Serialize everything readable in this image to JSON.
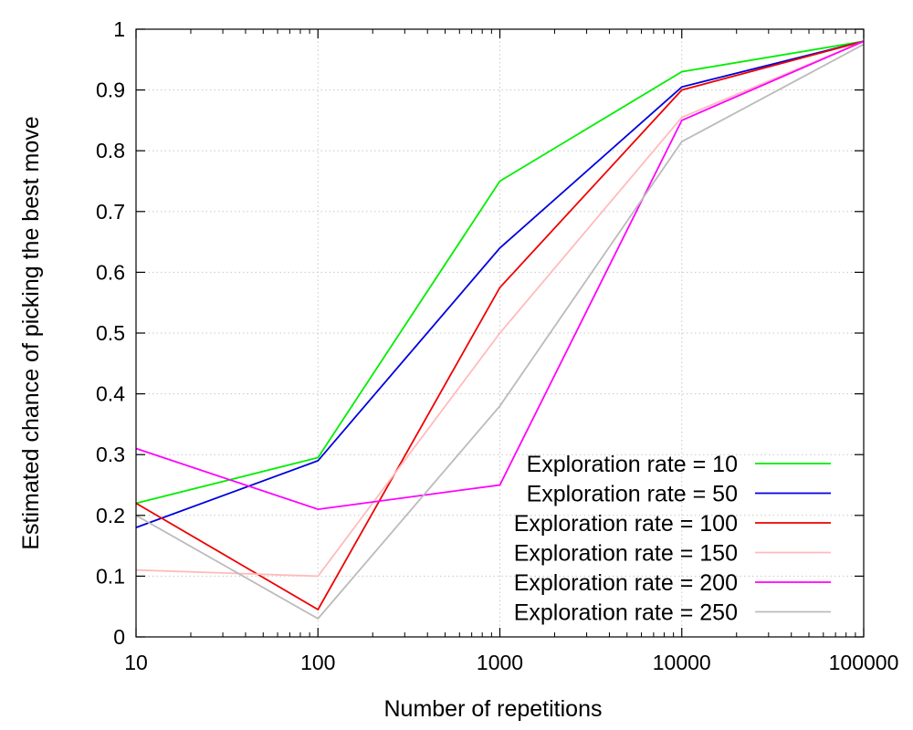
{
  "chart_data": {
    "type": "line",
    "xlabel": "Number of repetitions",
    "ylabel": "Estimated chance of picking the best move",
    "x_scale": "log",
    "x": [
      10,
      100,
      1000,
      10000,
      100000
    ],
    "xlim": [
      10,
      100000
    ],
    "ylim": [
      0,
      1
    ],
    "x_ticks": [
      "10",
      "100",
      "1000",
      "10000",
      "100000"
    ],
    "y_ticks": [
      "0",
      "0.1",
      "0.2",
      "0.3",
      "0.4",
      "0.5",
      "0.6",
      "0.7",
      "0.8",
      "0.9",
      "1"
    ],
    "y_tick_values": [
      0,
      0.1,
      0.2,
      0.3,
      0.4,
      0.5,
      0.6,
      0.7,
      0.8,
      0.9,
      1
    ],
    "grid": true,
    "legend_position": "bottom-right",
    "series": [
      {
        "name": "Exploration rate = 10",
        "color": "#00ee00",
        "values": [
          0.22,
          0.295,
          0.75,
          0.93,
          0.98
        ]
      },
      {
        "name": "Exploration rate = 50",
        "color": "#0000dd",
        "values": [
          0.18,
          0.29,
          0.64,
          0.905,
          0.98
        ]
      },
      {
        "name": "Exploration rate = 100",
        "color": "#ee0000",
        "values": [
          0.22,
          0.045,
          0.575,
          0.9,
          0.98
        ]
      },
      {
        "name": "Exploration rate = 150",
        "color": "#ffbbbb",
        "values": [
          0.11,
          0.1,
          0.5,
          0.855,
          0.98
        ]
      },
      {
        "name": "Exploration rate = 200",
        "color": "#ff00ff",
        "values": [
          0.31,
          0.21,
          0.25,
          0.85,
          0.98
        ]
      },
      {
        "name": "Exploration rate = 250",
        "color": "#bbbbbb",
        "values": [
          0.2,
          0.03,
          0.38,
          0.815,
          0.975
        ]
      }
    ]
  }
}
